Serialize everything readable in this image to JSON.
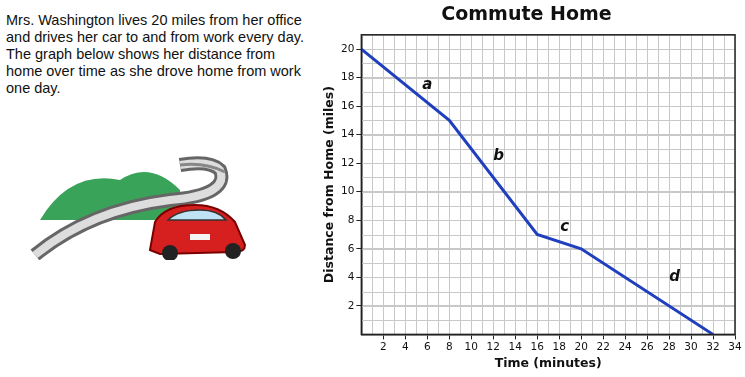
{
  "intro": "Mrs. Washington lives 20 miles from her office and drives her car to and from work every day. The graph below shows her distance from home over time as she drove home from work one day.",
  "chart_data": {
    "type": "line",
    "title": "Commute Home",
    "x_label": "Time (minutes)",
    "y_label": "Distance from Home (miles)",
    "x": [
      0,
      8,
      16,
      20,
      32
    ],
    "values": [
      20,
      15,
      7,
      6,
      0
    ],
    "color": "#1f3fbf",
    "xlim": [
      0,
      34
    ],
    "xticks": [
      2,
      4,
      6,
      8,
      10,
      12,
      14,
      16,
      18,
      20,
      22,
      24,
      26,
      28,
      30,
      32,
      34
    ],
    "ylim": [
      0,
      21
    ],
    "yticks": [
      2,
      4,
      6,
      8,
      10,
      12,
      14,
      16,
      18,
      20
    ],
    "grid": true,
    "annotations": [
      {
        "text": "a",
        "x": 6,
        "y": 17.5
      },
      {
        "text": "b",
        "x": 12.5,
        "y": 12.5
      },
      {
        "text": "c",
        "x": 18.5,
        "y": 7.5
      },
      {
        "text": "d",
        "x": 28.5,
        "y": 4
      }
    ]
  }
}
